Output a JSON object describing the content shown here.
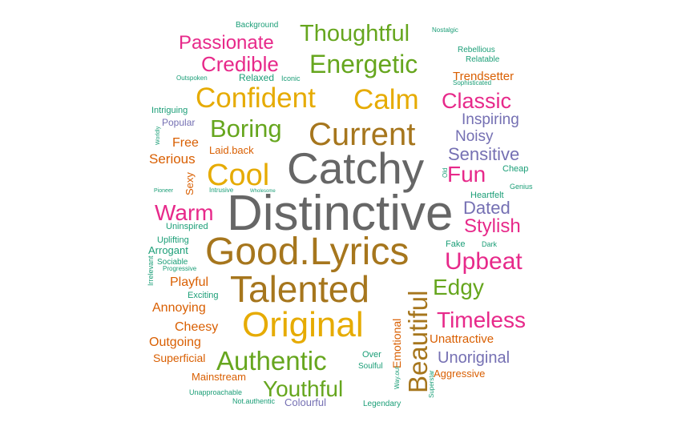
{
  "palette": {
    "teal": "#1b9e77",
    "orange": "#d95f02",
    "purple": "#7570b3",
    "pink": "#e7298a",
    "green": "#66a61e",
    "gold": "#e6ab02",
    "brown": "#a6761d",
    "grey": "#666666"
  },
  "words": [
    {
      "text": "Distinctive",
      "color": "grey"
    },
    {
      "text": "Catchy",
      "color": "grey"
    },
    {
      "text": "Good.Lyrics",
      "color": "brown"
    },
    {
      "text": "Talented",
      "color": "brown"
    },
    {
      "text": "Original",
      "color": "gold"
    },
    {
      "text": "Current",
      "color": "brown"
    },
    {
      "text": "Confident",
      "color": "gold"
    },
    {
      "text": "Calm",
      "color": "gold"
    },
    {
      "text": "Cool",
      "color": "gold"
    },
    {
      "text": "Energetic",
      "color": "green"
    },
    {
      "text": "Thoughtful",
      "color": "green"
    },
    {
      "text": "Authentic",
      "color": "green"
    },
    {
      "text": "Youthful",
      "color": "green"
    },
    {
      "text": "Boring",
      "color": "green"
    },
    {
      "text": "Beautiful",
      "color": "brown"
    },
    {
      "text": "Upbeat",
      "color": "pink"
    },
    {
      "text": "Timeless",
      "color": "pink"
    },
    {
      "text": "Classic",
      "color": "pink"
    },
    {
      "text": "Edgy",
      "color": "green"
    },
    {
      "text": "Passionate",
      "color": "pink"
    },
    {
      "text": "Credible",
      "color": "pink"
    },
    {
      "text": "Warm",
      "color": "pink"
    },
    {
      "text": "Stylish",
      "color": "pink"
    },
    {
      "text": "Fun",
      "color": "pink"
    },
    {
      "text": "Sensitive",
      "color": "purple"
    },
    {
      "text": "Dated",
      "color": "purple"
    },
    {
      "text": "Unoriginal",
      "color": "purple"
    },
    {
      "text": "Inspiring",
      "color": "purple"
    },
    {
      "text": "Noisy",
      "color": "purple"
    },
    {
      "text": "Trendsetter",
      "color": "orange"
    },
    {
      "text": "Unattractive",
      "color": "orange"
    },
    {
      "text": "Aggressive",
      "color": "orange"
    },
    {
      "text": "Serious",
      "color": "orange"
    },
    {
      "text": "Free",
      "color": "orange"
    },
    {
      "text": "Playful",
      "color": "orange"
    },
    {
      "text": "Annoying",
      "color": "orange"
    },
    {
      "text": "Cheesy",
      "color": "orange"
    },
    {
      "text": "Outgoing",
      "color": "orange"
    },
    {
      "text": "Superficial",
      "color": "orange"
    },
    {
      "text": "Mainstream",
      "color": "orange"
    },
    {
      "text": "Laid.back",
      "color": "orange"
    },
    {
      "text": "Sexy",
      "color": "orange"
    },
    {
      "text": "Emotional",
      "color": "orange"
    },
    {
      "text": "Colourful",
      "color": "purple"
    },
    {
      "text": "Popular",
      "color": "purple"
    },
    {
      "text": "Arrogant",
      "color": "teal"
    },
    {
      "text": "Relaxed",
      "color": "teal"
    },
    {
      "text": "Intriguing",
      "color": "teal"
    },
    {
      "text": "Uninspired",
      "color": "teal"
    },
    {
      "text": "Uplifting",
      "color": "teal"
    },
    {
      "text": "Exciting",
      "color": "teal"
    },
    {
      "text": "Sociable",
      "color": "teal"
    },
    {
      "text": "Progressive",
      "color": "teal"
    },
    {
      "text": "Irrelevant",
      "color": "teal"
    },
    {
      "text": "Heartfelt",
      "color": "teal"
    },
    {
      "text": "Cheap",
      "color": "teal"
    },
    {
      "text": "Genius",
      "color": "teal"
    },
    {
      "text": "Fake",
      "color": "teal"
    },
    {
      "text": "Dark",
      "color": "teal"
    },
    {
      "text": "Over",
      "color": "teal"
    },
    {
      "text": "Soulful",
      "color": "teal"
    },
    {
      "text": "Legendary",
      "color": "teal"
    },
    {
      "text": "Unapproachable",
      "color": "teal"
    },
    {
      "text": "Not.authentic",
      "color": "teal"
    },
    {
      "text": "Way.out",
      "color": "teal"
    },
    {
      "text": "Superstar",
      "color": "teal"
    },
    {
      "text": "Background",
      "color": "teal"
    },
    {
      "text": "Nostalgic",
      "color": "teal"
    },
    {
      "text": "Rebellious",
      "color": "teal"
    },
    {
      "text": "Relatable",
      "color": "teal"
    },
    {
      "text": "Sophisticated",
      "color": "teal"
    },
    {
      "text": "Outspoken",
      "color": "teal"
    },
    {
      "text": "Iconic",
      "color": "teal"
    },
    {
      "text": "Worldly",
      "color": "teal"
    },
    {
      "text": "Pioneer",
      "color": "teal"
    },
    {
      "text": "Intrusive",
      "color": "teal"
    },
    {
      "text": "Wholesome",
      "color": "teal"
    },
    {
      "text": "Old",
      "color": "teal"
    }
  ]
}
